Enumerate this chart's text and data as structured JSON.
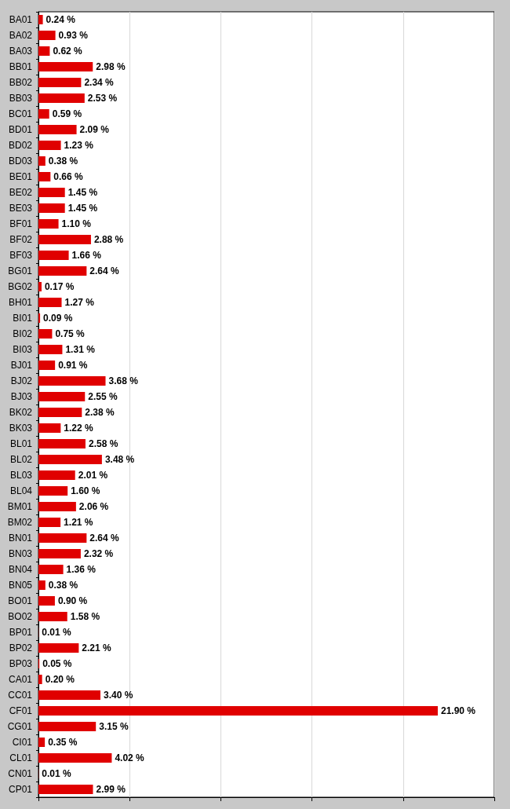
{
  "chart_data": {
    "type": "bar",
    "orientation": "horizontal",
    "categories": [
      "BA01",
      "BA02",
      "BA03",
      "BB01",
      "BB02",
      "BB03",
      "BC01",
      "BD01",
      "BD02",
      "BD03",
      "BE01",
      "BE02",
      "BE03",
      "BF01",
      "BF02",
      "BF03",
      "BG01",
      "BG02",
      "BH01",
      "BI01",
      "BI02",
      "BI03",
      "BJ01",
      "BJ02",
      "BJ03",
      "BK02",
      "BK03",
      "BL01",
      "BL02",
      "BL03",
      "BL04",
      "BM01",
      "BM02",
      "BN01",
      "BN03",
      "BN04",
      "BN05",
      "BO01",
      "BO02",
      "BP01",
      "BP02",
      "BP03",
      "CA01",
      "CC01",
      "CF01",
      "CG01",
      "CI01",
      "CL01",
      "CN01",
      "CP01"
    ],
    "values": [
      0.24,
      0.93,
      0.62,
      2.98,
      2.34,
      2.53,
      0.59,
      2.09,
      1.23,
      0.38,
      0.66,
      1.45,
      1.45,
      1.1,
      2.88,
      1.66,
      2.64,
      0.17,
      1.27,
      0.09,
      0.75,
      1.31,
      0.91,
      3.68,
      2.55,
      2.38,
      1.22,
      2.58,
      3.48,
      2.01,
      1.6,
      2.06,
      1.21,
      2.64,
      2.32,
      1.36,
      0.38,
      0.9,
      1.58,
      0.01,
      2.21,
      0.05,
      0.2,
      3.4,
      21.9,
      3.15,
      0.35,
      4.02,
      0.01,
      2.99
    ],
    "value_labels": [
      "0.24 %",
      "0.93 %",
      "0.62 %",
      "2.98 %",
      "2.34 %",
      "2.53 %",
      "0.59 %",
      "2.09 %",
      "1.23 %",
      "0.38 %",
      "0.66 %",
      "1.45 %",
      "1.45 %",
      "1.10 %",
      "2.88 %",
      "1.66 %",
      "2.64 %",
      "0.17 %",
      "1.27 %",
      "0.09 %",
      "0.75 %",
      "1.31 %",
      "0.91 %",
      "3.68 %",
      "2.55 %",
      "2.38 %",
      "1.22 %",
      "2.58 %",
      "3.48 %",
      "2.01 %",
      "1.60 %",
      "2.06 %",
      "1.21 %",
      "2.64 %",
      "2.32 %",
      "1.36 %",
      "0.38 %",
      "0.90 %",
      "1.58 %",
      "0.01 %",
      "2.21 %",
      "0.05 %",
      "0.20 %",
      "3.40 %",
      "21.90 %",
      "3.15 %",
      "0.35 %",
      "4.02 %",
      "0.01 %",
      "2.99 %"
    ],
    "color": "#e00000",
    "tick_labels": "y",
    "grid": "x"
  }
}
